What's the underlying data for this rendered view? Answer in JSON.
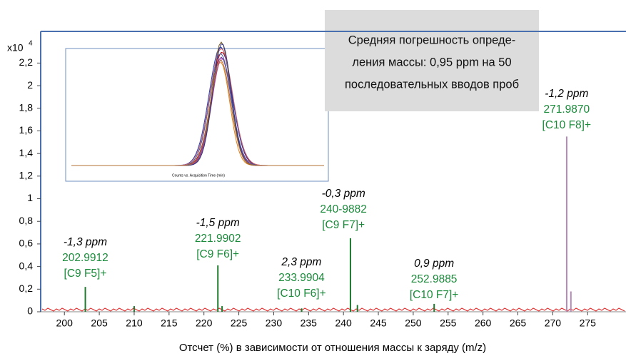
{
  "chart_data": {
    "type": "spectrum",
    "x_label": "Отсчет (%) в зависимости от отношения массы к заряду (m/z)",
    "y_multiplier": {
      "base": "x10",
      "exponent": "4"
    },
    "xlim": [
      196.6,
      280.5
    ],
    "xticks": [
      200,
      205,
      210,
      215,
      220,
      225,
      230,
      235,
      240,
      245,
      250,
      255,
      260,
      265,
      270,
      275
    ],
    "ylim": [
      0,
      2.48
    ],
    "yticks": [
      0,
      {
        "value": 0.2,
        "label": "0,2"
      },
      {
        "value": 0.4,
        "label": "0,4"
      },
      {
        "value": 0.6,
        "label": "0,6"
      },
      {
        "value": 0.8,
        "label": "0,8"
      },
      1,
      {
        "value": 1.2,
        "label": "1,2"
      },
      {
        "value": 1.4,
        "label": "1,4"
      },
      {
        "value": 1.6,
        "label": "1,6"
      },
      {
        "value": 1.8,
        "label": "1,8"
      },
      2,
      {
        "value": 2.2,
        "label": "2,2"
      }
    ],
    "series": [
      {
        "color": "#1e7a2e",
        "x": [
          203.0,
          210.0,
          222.0,
          222.6,
          234.0,
          241.0,
          242.0,
          253.0
        ],
        "values": [
          0.22,
          0.05,
          0.41,
          0.05,
          0.03,
          0.65,
          0.06,
          0.07
        ]
      },
      {
        "color": "#b58ab8",
        "x": [
          272.0,
          272.6
        ],
        "values": [
          1.55,
          0.18
        ]
      }
    ],
    "annotations": [
      {
        "ppm": "-1,3 ppm",
        "mz": "202.9912",
        "formula": "[C9 F5]+"
      },
      {
        "ppm": "-1,5 ppm",
        "mz": "221.9902",
        "formula": "[C9 F6]+"
      },
      {
        "ppm": "2,3 ppm",
        "mz": "233.9904",
        "formula": "[C10 F6]+"
      },
      {
        "ppm": "-0,3 ppm",
        "mz": "240-9882",
        "formula": "[C9 F7]+"
      },
      {
        "ppm": "0,9 ppm",
        "mz": "252.9885",
        "formula": "[C10 F7]+"
      },
      {
        "ppm": "-1,2 ppm",
        "mz": "271.9870",
        "formula": "[C10 F8]+"
      }
    ],
    "callout": [
      "Средняя погрешность опреде-",
      "ления массы: 0,95 ppm на 50",
      "последовательных вводов проб"
    ],
    "inset": {
      "x_label": "Counts vs. Acquisition Time (min)"
    }
  }
}
